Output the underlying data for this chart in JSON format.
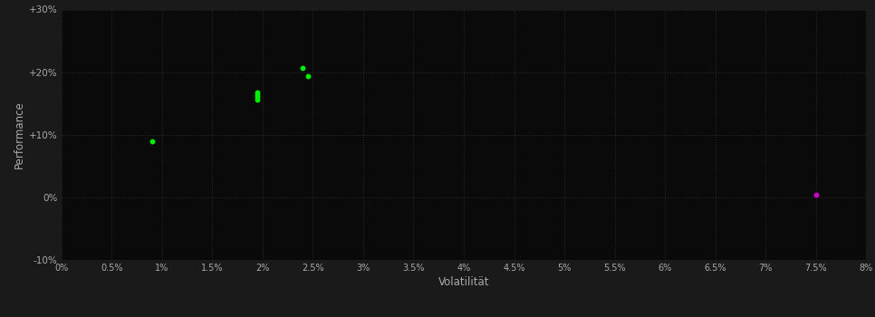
{
  "background_color": "#1a1a1a",
  "plot_bg_color": "#0a0a0a",
  "grid_color": "#2a2a2a",
  "grid_style": ":",
  "xlabel": "Volatilität",
  "ylabel": "Performance",
  "xlabel_color": "#aaaaaa",
  "ylabel_color": "#aaaaaa",
  "tick_color": "#aaaaaa",
  "xlim": [
    0.0,
    0.08
  ],
  "ylim": [
    -0.1,
    0.3
  ],
  "xticks": [
    0.0,
    0.005,
    0.01,
    0.015,
    0.02,
    0.025,
    0.03,
    0.035,
    0.04,
    0.045,
    0.05,
    0.055,
    0.06,
    0.065,
    0.07,
    0.075,
    0.08
  ],
  "xtick_labels": [
    "0%",
    "0.5%",
    "1%",
    "1.5%",
    "2%",
    "2.5%",
    "3%",
    "3.5%",
    "4%",
    "4.5%",
    "5%",
    "5.5%",
    "6%",
    "6.5%",
    "7%",
    "7.5%",
    "8%"
  ],
  "yticks": [
    -0.1,
    0.0,
    0.1,
    0.2,
    0.3
  ],
  "ytick_labels": [
    "-10%",
    "0%",
    "+10%",
    "+20%",
    "+30%"
  ],
  "green_points": [
    [
      0.009,
      0.09
    ],
    [
      0.0195,
      0.168
    ],
    [
      0.0195,
      0.16
    ],
    [
      0.0195,
      0.156
    ],
    [
      0.0195,
      0.164
    ],
    [
      0.024,
      0.207
    ],
    [
      0.0245,
      0.193
    ]
  ],
  "magenta_points": [
    [
      0.075,
      0.004
    ]
  ],
  "green_color": "#00ee00",
  "magenta_color": "#cc00cc",
  "point_size": 18
}
